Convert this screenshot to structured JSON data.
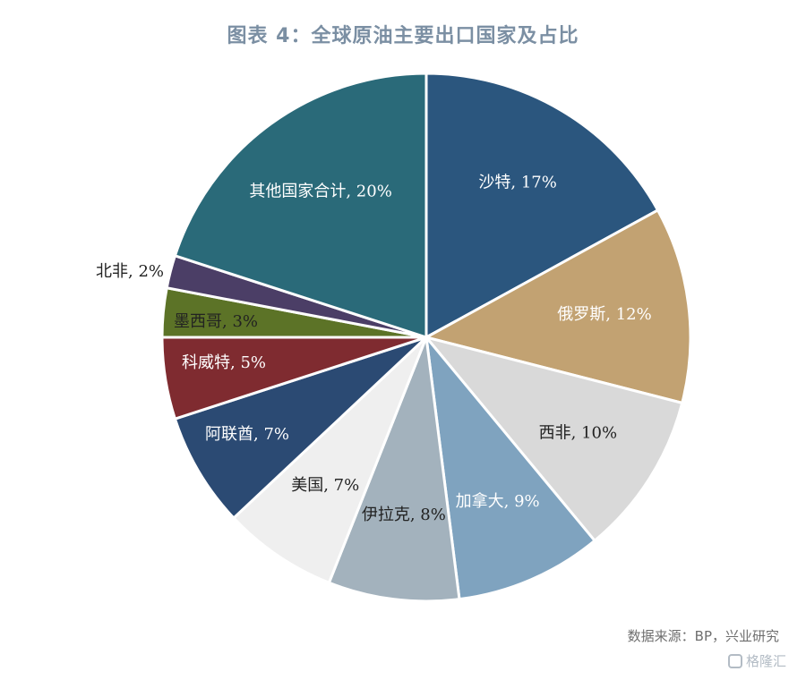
{
  "chart_data": {
    "type": "pie",
    "title": "图表 4：全球原油主要出口国家及占比",
    "slices": [
      {
        "label": "沙特, 17%",
        "value": 17,
        "color": "#2b567e"
      },
      {
        "label": "俄罗斯, 12%",
        "value": 12,
        "color": "#c2a272"
      },
      {
        "label": "西非, 10%",
        "value": 10,
        "color": "#d9d9d9"
      },
      {
        "label": "加拿大, 9%",
        "value": 9,
        "color": "#7fa3bf"
      },
      {
        "label": "伊拉克, 8%",
        "value": 8,
        "color": "#a3b2bd"
      },
      {
        "label": "美国, 7%",
        "value": 7,
        "color": "#efefef"
      },
      {
        "label": "阿联酋, 7%",
        "value": 7,
        "color": "#2b4a73"
      },
      {
        "label": "科威特, 5%",
        "value": 5,
        "color": "#7f2b30"
      },
      {
        "label": "墨西哥, 3%",
        "value": 3,
        "color": "#5c7327"
      },
      {
        "label": "北非, 2%",
        "value": 2,
        "color": "#4b3e66"
      },
      {
        "label": "其他国家合计, 20%",
        "value": 20,
        "color": "#2a6a79"
      }
    ]
  },
  "source": "数据来源：BP，兴业研究",
  "watermark": "格隆汇"
}
